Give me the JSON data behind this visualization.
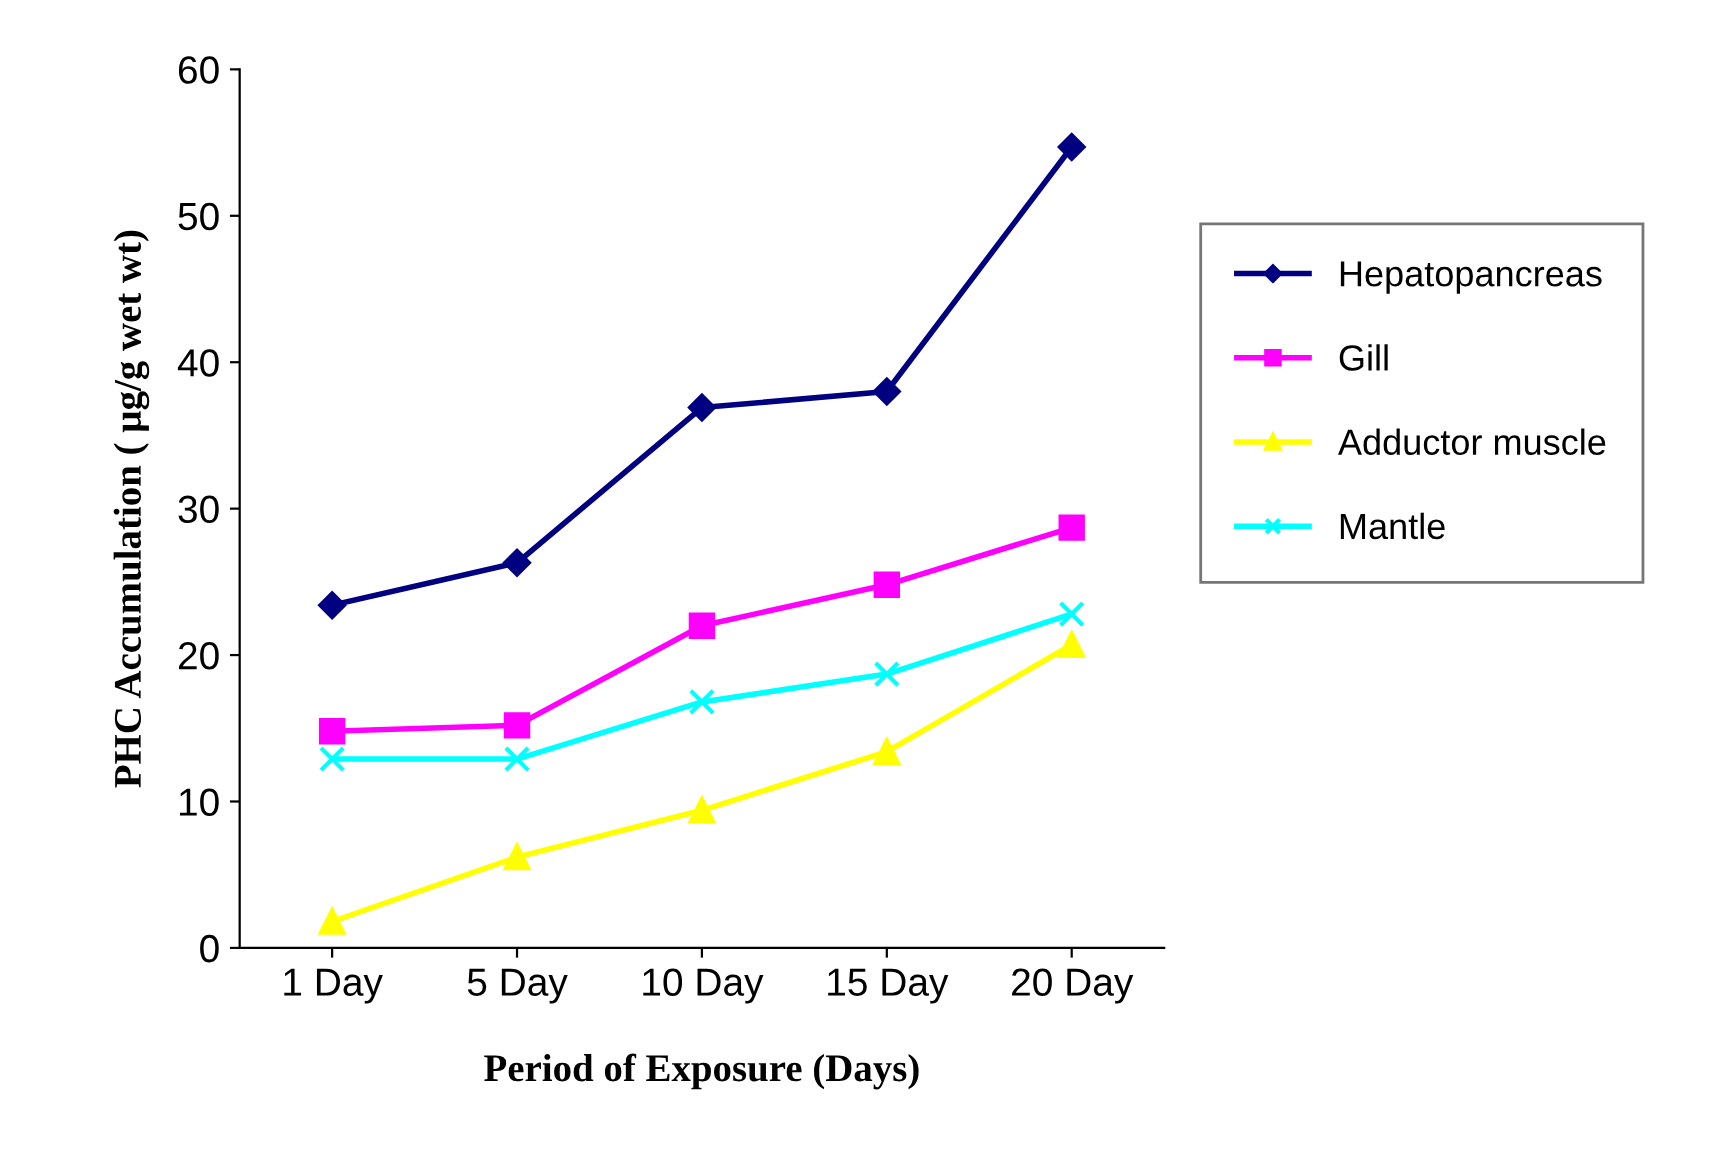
{
  "chart_data": {
    "type": "line",
    "xlabel": "Period of Exposure (Days)",
    "ylabel": "PHC Accumulation ( µg/g wet wt)",
    "categories": [
      "1 Day",
      "5 Day",
      "10 Day",
      "15 Day",
      "20 Day"
    ],
    "series": [
      {
        "name": "Hepatopancreas",
        "color": "#000080",
        "marker": "diamond",
        "values": [
          23.4,
          26.3,
          36.9,
          38.0,
          54.7
        ]
      },
      {
        "name": "Gill",
        "color": "#ff00ff",
        "marker": "square",
        "values": [
          14.8,
          15.2,
          22.0,
          24.8,
          28.7
        ]
      },
      {
        "name": "Adductor muscle",
        "color": "#ffff00",
        "marker": "triangle",
        "values": [
          1.8,
          6.2,
          9.4,
          13.4,
          20.7
        ]
      },
      {
        "name": "Mantle",
        "color": "#00ffff",
        "marker": "cross",
        "values": [
          12.9,
          12.9,
          16.8,
          18.7,
          22.8
        ]
      }
    ],
    "ylim": [
      0,
      60
    ],
    "yticks": [
      0,
      10,
      20,
      30,
      40,
      50,
      60
    ],
    "grid": false,
    "legend": "right",
    "line_style": "solid"
  }
}
